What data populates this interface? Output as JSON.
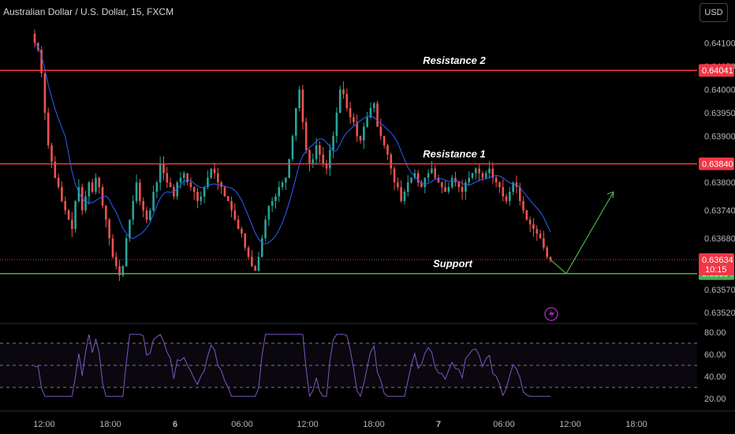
{
  "header": {
    "title": "Australian Dollar / U.S. Dollar, 15, FXCM",
    "currency_button": "USD"
  },
  "chart_data": {
    "type": "candlestick",
    "symbol": "Australian Dollar / U.S. Dollar",
    "interval": "15",
    "source": "FXCM",
    "price_ticks": [
      "0.64100",
      "0.64050",
      "0.64000",
      "0.63950",
      "0.63900",
      "0.63800",
      "0.63740",
      "0.63680",
      "0.63570",
      "0.63520"
    ],
    "time_ticks": [
      "12:00",
      "18:00",
      "6",
      "06:00",
      "12:00",
      "18:00",
      "7",
      "06:00",
      "12:00",
      "18:00"
    ],
    "levels": [
      {
        "label": "Resistance 2",
        "price": "0.64041",
        "color": "#f23645"
      },
      {
        "label": "Resistance 1",
        "price": "0.63840",
        "color": "#f23645"
      },
      {
        "label": "Support",
        "price": "0.63604",
        "color": "#4caf50"
      }
    ],
    "current_price": {
      "price": "0.63634",
      "countdown": "10:15",
      "color": "#f23645"
    },
    "projection": "down-then-up arrow from last close to support then upward",
    "closes": [
      0.641,
      0.64085,
      0.64035,
      0.6395,
      0.6388,
      0.63845,
      0.6381,
      0.6379,
      0.6376,
      0.6374,
      0.6372,
      0.637,
      0.6376,
      0.6379,
      0.6374,
      0.6377,
      0.638,
      0.6378,
      0.6381,
      0.6379,
      0.6375,
      0.6372,
      0.6368,
      0.6364,
      0.6362,
      0.636,
      0.6362,
      0.6368,
      0.6372,
      0.6376,
      0.638,
      0.6376,
      0.6374,
      0.6372,
      0.6374,
      0.6378,
      0.638,
      0.6384,
      0.6382,
      0.638,
      0.6379,
      0.6377,
      0.638,
      0.6381,
      0.6382,
      0.638,
      0.6379,
      0.6378,
      0.6376,
      0.6377,
      0.6379,
      0.6381,
      0.6383,
      0.6382,
      0.638,
      0.6379,
      0.6377,
      0.6376,
      0.6374,
      0.6372,
      0.637,
      0.6369,
      0.6366,
      0.6364,
      0.6362,
      0.6361,
      0.6364,
      0.6368,
      0.6372,
      0.6375,
      0.6376,
      0.6377,
      0.6379,
      0.638,
      0.6381,
      0.6385,
      0.639,
      0.6396,
      0.64,
      0.6393,
      0.6387,
      0.6384,
      0.6385,
      0.6388,
      0.6386,
      0.6384,
      0.6383,
      0.6387,
      0.639,
      0.6395,
      0.64,
      0.6399,
      0.6396,
      0.6394,
      0.6393,
      0.639,
      0.6389,
      0.6392,
      0.6394,
      0.6396,
      0.6397,
      0.6392,
      0.639,
      0.6388,
      0.6386,
      0.6383,
      0.638,
      0.6379,
      0.6376,
      0.6378,
      0.638,
      0.6381,
      0.6382,
      0.638,
      0.6379,
      0.6381,
      0.6382,
      0.6383,
      0.6381,
      0.638,
      0.6379,
      0.6378,
      0.6379,
      0.6381,
      0.638,
      0.6379,
      0.6378,
      0.638,
      0.6381,
      0.6382,
      0.6383,
      0.6382,
      0.6381,
      0.6382,
      0.6383,
      0.6381,
      0.638,
      0.6379,
      0.6377,
      0.6376,
      0.6378,
      0.638,
      0.6379,
      0.6376,
      0.6374,
      0.6372,
      0.6371,
      0.637,
      0.6369,
      0.6368,
      0.6366,
      0.6364,
      0.63634
    ]
  },
  "rsi": {
    "ticks": [
      "80.00",
      "60.00",
      "40.00",
      "20.00"
    ],
    "upper": 70,
    "mid": 50,
    "lower": 30
  },
  "colors": {
    "up": "#26a69a",
    "down": "#ef5350",
    "ma": "#2962ff",
    "rsi_line": "#7e57c2",
    "background": "#000000"
  }
}
